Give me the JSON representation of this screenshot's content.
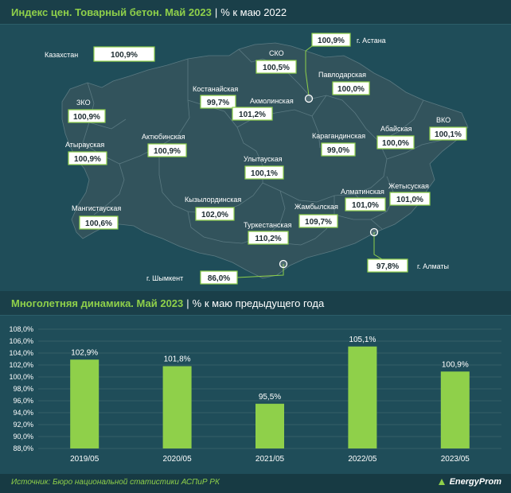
{
  "map_section": {
    "title": "Индекс цен. Товарный бетон. Май 2023",
    "separator": "|",
    "subtitle": "% к маю 2022",
    "national": {
      "name": "Казахстан",
      "value": "100,9%"
    },
    "regions": [
      {
        "key": "zko",
        "name": "ЗКО",
        "value": "100,9%"
      },
      {
        "key": "atyrau",
        "name": "Атырауская",
        "value": "100,9%"
      },
      {
        "key": "mangistau",
        "name": "Мангистауская",
        "value": "100,6%"
      },
      {
        "key": "aktobe",
        "name": "Актюбинская",
        "value": "100,9%"
      },
      {
        "key": "kostanay",
        "name": "Костанайская",
        "value": "99,7%"
      },
      {
        "key": "sko",
        "name": "СКО",
        "value": "100,5%"
      },
      {
        "key": "akmola",
        "name": "Акмолинская",
        "value": "101,2%"
      },
      {
        "key": "pavlodar",
        "name": "Павлодарская",
        "value": "100,0%"
      },
      {
        "key": "vko",
        "name": "ВКО",
        "value": "100,1%"
      },
      {
        "key": "abay",
        "name": "Абайская",
        "value": "100,0%"
      },
      {
        "key": "karaganda",
        "name": "Карагандинская",
        "value": "99,0%"
      },
      {
        "key": "ulytau",
        "name": "Улытауская",
        "value": "100,1%"
      },
      {
        "key": "kyzylorda",
        "name": "Кызылординская",
        "value": "102,0%"
      },
      {
        "key": "zhetysu",
        "name": "Жетысуская",
        "value": "101,0%"
      },
      {
        "key": "almaty_reg",
        "name": "Алматинская",
        "value": "101,0%"
      },
      {
        "key": "zhambyl",
        "name": "Жамбылская",
        "value": "109,7%"
      },
      {
        "key": "turkestan",
        "name": "Туркестанская",
        "value": "110,2%"
      }
    ],
    "cities": [
      {
        "key": "astana",
        "name": "г. Астана",
        "value": "100,9%"
      },
      {
        "key": "almaty",
        "name": "г. Алматы",
        "value": "97,8%"
      },
      {
        "key": "shymkent",
        "name": "г. Шымкент",
        "value": "86,0%"
      }
    ]
  },
  "chart_section": {
    "title": "Многолетняя динамика. Май 2023",
    "separator": "|",
    "subtitle": "% к маю предыдущего года"
  },
  "chart_data": {
    "type": "bar",
    "categories": [
      "2019/05",
      "2020/05",
      "2021/05",
      "2022/05",
      "2023/05"
    ],
    "values": [
      102.9,
      101.8,
      95.5,
      105.1,
      100.9
    ],
    "value_labels": [
      "102,9%",
      "101,8%",
      "95,5%",
      "105,1%",
      "100,9%"
    ],
    "ylim": [
      88,
      108
    ],
    "ytick_step": 2,
    "ytick_labels": [
      "88,0%",
      "90,0%",
      "92,0%",
      "94,0%",
      "96,0%",
      "98,0%",
      "100,0%",
      "102,0%",
      "104,0%",
      "106,0%",
      "108,0%"
    ],
    "grid": true,
    "bar_color": "#8fd04a"
  },
  "footer": {
    "source": "Источник: Бюро национальной статистики АСПиР РК",
    "brand": "EnergyProm"
  },
  "colors": {
    "accent": "#8fd04a",
    "background": "#1f4d59",
    "map_fill": "#32535c"
  }
}
